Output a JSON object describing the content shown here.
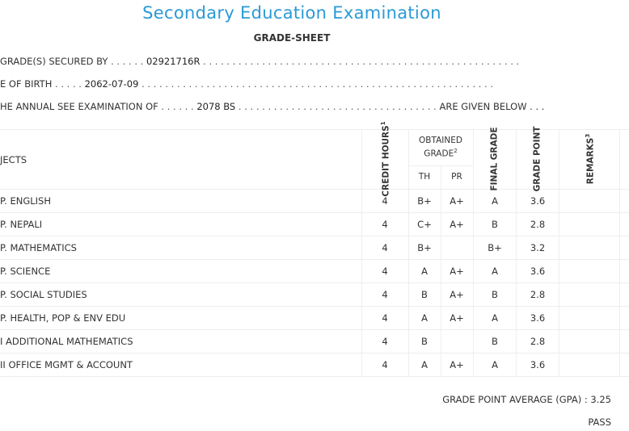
{
  "header": {
    "title": "Secondary Education Examination",
    "subtitle": "GRADE-SHEET"
  },
  "info": {
    "grades_secured": {
      "label": " GRADE(S) SECURED BY",
      "dots_before": " . . . . . . ",
      "value": "02921716R",
      "dots_after": " . . . . . . . . . . . . . . . . . . . . . . . . . . . . . . . . . . . . . . . . . . . . . . . . . . . . . ."
    },
    "dob": {
      "label": "E OF BIRTH",
      "dots_before": " . . . . . ",
      "value": "2062-07-09",
      "dots_after": " . . . . . . . . . . . . . . . . . . . . . . . . . . . . . . . . . . . . . . . . . . . . . . . . . . . . . . . . . . . ."
    },
    "exam": {
      "label": "HE ANNUAL SEE EXAMINATION OF",
      "dots_before": " . . . . . . ",
      "value": "2078 BS",
      "dots_after": " . . . . . . . . . . . . . . . . . . . . . . . . . . . . . . . . . . ",
      "suffix": "ARE GIVEN BELOW . . ."
    }
  },
  "table": {
    "headers": {
      "subjects": "JECTS",
      "credit_hours": "CREDIT HOURS",
      "credit_sup": "1",
      "obtained_grade_line1": "OBTAINED",
      "obtained_grade_line2": "GRADE",
      "obtained_sup": "2",
      "th": "TH",
      "pr": "PR",
      "final_grade": "FINAL GRADE",
      "grade_point": "GRADE POINT",
      "remarks": "REMARKS",
      "remarks_sup": "3"
    },
    "rows": [
      {
        "subject": "P. ENGLISH",
        "credit": "4",
        "th": "B+",
        "pr": "A+",
        "final": "A",
        "gp": "3.6"
      },
      {
        "subject": "P. NEPALI",
        "credit": "4",
        "th": "C+",
        "pr": "A+",
        "final": "B",
        "gp": "2.8"
      },
      {
        "subject": "P. MATHEMATICS",
        "credit": "4",
        "th": "B+",
        "pr": "",
        "final": "B+",
        "gp": "3.2"
      },
      {
        "subject": "P. SCIENCE",
        "credit": "4",
        "th": "A",
        "pr": "A+",
        "final": "A",
        "gp": "3.6"
      },
      {
        "subject": "P. SOCIAL STUDIES",
        "credit": "4",
        "th": "B",
        "pr": "A+",
        "final": "B",
        "gp": "2.8"
      },
      {
        "subject": "P. HEALTH, POP & ENV EDU",
        "credit": "4",
        "th": "A",
        "pr": "A+",
        "final": "A",
        "gp": "3.6"
      },
      {
        "subject": "I ADDITIONAL MATHEMATICS",
        "credit": "4",
        "th": "B",
        "pr": "",
        "final": "B",
        "gp": "2.8"
      },
      {
        "subject": "II OFFICE MGMT & ACCOUNT",
        "credit": "4",
        "th": "A",
        "pr": "A+",
        "final": "A",
        "gp": "3.6"
      }
    ]
  },
  "footer": {
    "gpa_label": "GRADE POINT AVERAGE (GPA) :",
    "gpa_value": "3.25",
    "result": "PASS"
  }
}
